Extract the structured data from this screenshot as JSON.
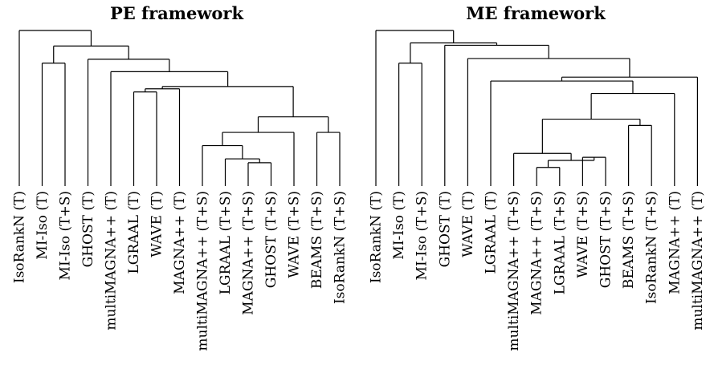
{
  "panels": [
    {
      "title": "PE framework",
      "leaves": [
        "IsoRankN (T)",
        "MI-Iso (T)",
        "MI-Iso (T+S)",
        "GHOST (T)",
        "multiMAGNA++ (T)",
        "LGRAAL (T)",
        "WAVE (T)",
        "MAGNA++ (T)",
        "multiMAGNA++ (T+S)",
        "LGRAAL (T+S)",
        "MAGNA++ (T+S)",
        "GHOST (T+S)",
        "WAVE (T+S)",
        "BEAMS (T+S)",
        "IsoRankN (T+S)"
      ],
      "merges": [
        {
          "a": 10,
          "b": 11,
          "level": 0.15
        },
        {
          "a": 9,
          "b": "m0",
          "level": 0.175
        },
        {
          "a": 8,
          "b": "m1",
          "level": 0.26
        },
        {
          "a": 13,
          "b": 14,
          "level": 0.345
        },
        {
          "a": "m2",
          "b": 12,
          "level": 0.345
        },
        {
          "a": "m4",
          "b": "m3",
          "level": 0.445
        },
        {
          "a": 5,
          "b": 6,
          "level": 0.605
        },
        {
          "a": "m6",
          "b": 7,
          "level": 0.625
        },
        {
          "a": "m7",
          "b": "m5",
          "level": 0.64
        },
        {
          "a": 4,
          "b": "m8",
          "level": 0.735
        },
        {
          "a": 3,
          "b": "m9",
          "level": 0.815
        },
        {
          "a": 1,
          "b": 2,
          "level": 0.79
        },
        {
          "a": "m11",
          "b": "m10",
          "level": 0.9
        },
        {
          "a": 0,
          "b": "m12",
          "level": 1.0
        }
      ]
    },
    {
      "title": "ME framework",
      "leaves": [
        "IsoRankN (T)",
        "MI-Iso (T)",
        "MI-Iso (T+S)",
        "GHOST (T)",
        "WAVE (T)",
        "LGRAAL (T)",
        "multiMAGNA++ (T+S)",
        "MAGNA++ (T+S)",
        "LGRAAL (T+S)",
        "WAVE (T+S)",
        "GHOST (T+S)",
        "BEAMS (T+S)",
        "IsoRankN (T+S)",
        "MAGNA++ (T)",
        "multiMAGNA++ (T)"
      ],
      "merges": [
        {
          "a": 7,
          "b": 8,
          "level": 0.12
        },
        {
          "a": 9,
          "b": 10,
          "level": 0.185
        },
        {
          "a": "m0",
          "b": "m1",
          "level": 0.165
        },
        {
          "a": 6,
          "b": "m2",
          "level": 0.21
        },
        {
          "a": 11,
          "b": 12,
          "level": 0.39
        },
        {
          "a": "m3",
          "b": "m4",
          "level": 0.43
        },
        {
          "a": "m5",
          "b": 13,
          "level": 0.595
        },
        {
          "a": 5,
          "b": "m6",
          "level": 0.675
        },
        {
          "a": "m7",
          "b": 14,
          "level": 0.7
        },
        {
          "a": 4,
          "b": "m8",
          "level": 0.82
        },
        {
          "a": 3,
          "b": "m9",
          "level": 0.905
        },
        {
          "a": 1,
          "b": 2,
          "level": 0.79
        },
        {
          "a": "m11",
          "b": "m10",
          "level": 0.92
        },
        {
          "a": 0,
          "b": "m12",
          "level": 1.0
        }
      ]
    }
  ]
}
